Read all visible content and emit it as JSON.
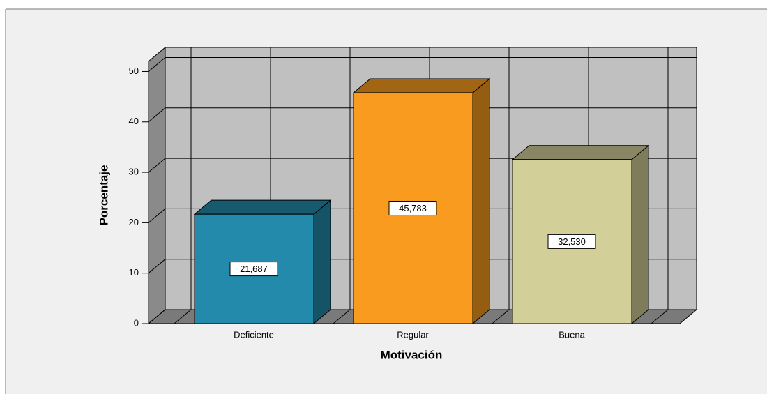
{
  "chart_data": {
    "type": "bar3d",
    "x_label": "Motivación",
    "y_label": "Porcentaje",
    "categories": [
      "Deficiente",
      "Regular",
      "Buena"
    ],
    "values": [
      21.687,
      45.783,
      32.53
    ],
    "value_labels": [
      "21,687",
      "45,783",
      "32,530"
    ],
    "colors": [
      "#238aab",
      "#f99b1e",
      "#d3cf98"
    ],
    "ylim": [
      0,
      52
    ],
    "yticks": [
      0,
      10,
      20,
      30,
      40,
      50
    ],
    "grid": true
  }
}
